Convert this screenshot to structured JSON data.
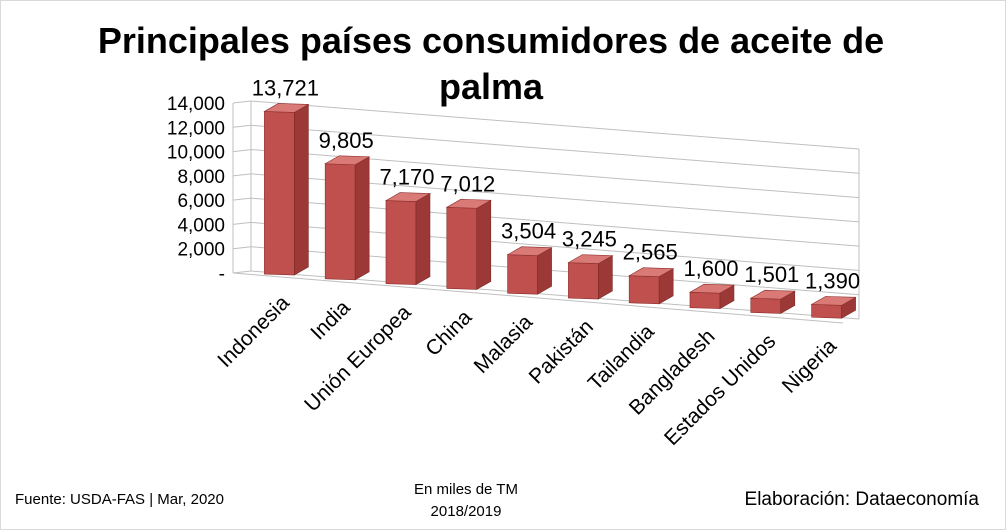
{
  "chart_data": {
    "type": "bar",
    "title_line1": "Principales países consumidores de aceite de",
    "title_line2": "palma",
    "categories": [
      "Indonesia",
      "India",
      "Unión Europea",
      "China",
      "Malasia",
      "Pakistán",
      "Tailandia",
      "Bangladesh",
      "Estados Unidos",
      "Nigeria"
    ],
    "values": [
      13721,
      9805,
      7170,
      7012,
      3504,
      3245,
      2565,
      1600,
      1501,
      1390
    ],
    "data_labels": [
      "13,721",
      "9,805",
      "7,170",
      "7,012",
      "3,504",
      "3,245",
      "2,565",
      "1,600",
      "1,501",
      "1,390"
    ],
    "yticks": [
      "-",
      "2,000",
      "4,000",
      "6,000",
      "8,000",
      "10,000",
      "12,000",
      "14,000"
    ],
    "ylim": [
      0,
      14000
    ],
    "grid": true,
    "legend": "none",
    "bar_color": "#c0504d"
  },
  "footer": {
    "source": "Fuente:  USDA-FAS | Mar, 2020",
    "unit_line1": "En miles de TM",
    "unit_line2": "2018/2019",
    "credit": "Elaboración: Dataeconomía"
  }
}
